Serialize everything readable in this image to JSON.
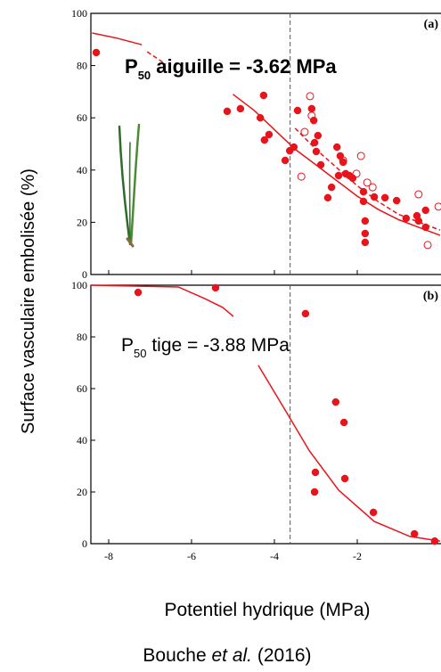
{
  "y_label": "Surface vasculaire embolisée (%)",
  "x_label": "Potentiel hydrique (MPa)",
  "citation": [
    "Bouche ",
    "et al.",
    " (2016)"
  ],
  "chart_data": [
    {
      "type": "scatter",
      "panel_tag": "(a)",
      "annotation": {
        "prefix": "P",
        "subscript": "50",
        "text": " aiguille = -3.62 MPa"
      },
      "xlim": [
        -8.43,
        0
      ],
      "xticks": [
        -8,
        -6,
        -4,
        -2
      ],
      "ylim": [
        0,
        100
      ],
      "yticks": [
        0,
        20,
        40,
        60,
        80,
        100
      ],
      "reference_x": -3.62,
      "series": [
        {
          "color": "#e8141b",
          "marker": "filled",
          "x": [
            -8.3,
            -5.14,
            -4.82,
            -4.26,
            -4.34,
            -4.13,
            -4.24,
            -3.63,
            -3.53,
            -3.74,
            -3.44,
            -3.1,
            -3.05,
            -2.95,
            -3.03,
            -2.99,
            -2.88,
            -2.71,
            -2.62,
            -2.49,
            -2.41,
            -2.34,
            -2.28,
            -2.19,
            -2.11,
            -1.85,
            -1.85,
            -1.81,
            -1.81,
            -1.81,
            -1.59,
            -1.33,
            -1.05,
            -0.82,
            -0.56,
            -0.35,
            -0.35,
            -0.52,
            -2.45
          ],
          "values": [
            85,
            62.5,
            63.5,
            68.6,
            60,
            53.6,
            51.5,
            47.4,
            48.8,
            43.7,
            62.8,
            63.5,
            59,
            53.2,
            50.5,
            47.1,
            42,
            29.4,
            33.4,
            48.8,
            45.4,
            43,
            38.6,
            37.9,
            36.9,
            31.7,
            28,
            20.5,
            15.7,
            12.3,
            29.7,
            29.4,
            28.3,
            21.5,
            22.5,
            24.6,
            18.1,
            20.5,
            37.9
          ]
        },
        {
          "color": "#e8141b",
          "marker": "open",
          "x": [
            -3.27,
            -3.14,
            -3.35,
            -2.34,
            -2.02,
            -1.91,
            -1.76,
            -1.63,
            -0.52,
            -0.3,
            -0.04,
            -3.1
          ],
          "values": [
            54.6,
            68.3,
            37.5,
            43.7,
            38.6,
            45.4,
            35.2,
            33.4,
            30.7,
            11.3,
            26,
            60.8
          ]
        }
      ],
      "curves": [
        {
          "color": "#e8141b",
          "style": "solid",
          "x": [
            -8.4,
            -7.8,
            -7.2,
            null,
            -5,
            -4.5,
            -4,
            -3.5,
            -3,
            -2.5,
            -2,
            -1.5,
            -1,
            -0.5,
            0
          ],
          "values": [
            92.5,
            90.5,
            88,
            null,
            69,
            63,
            55.5,
            48,
            42,
            36,
            30,
            25,
            21,
            18,
            15
          ]
        },
        {
          "color": "#e8141b",
          "style": "dashed",
          "x": [
            -7.07,
            -6.62,
            null,
            -3.5,
            -3,
            -2.5,
            -2,
            -1.5,
            -1,
            -0.5,
            0
          ],
          "values": [
            85.3,
            80.5,
            null,
            56,
            48,
            41,
            34,
            28,
            23,
            20,
            17
          ]
        }
      ]
    },
    {
      "type": "scatter",
      "panel_tag": "(b)",
      "annotation": {
        "prefix": "P",
        "subscript": "50",
        "text": " tige = -3.88 MPa"
      },
      "xlim": [
        -8.43,
        0
      ],
      "xticks": [
        -8,
        -6,
        -4,
        -2
      ],
      "ylim": [
        0,
        100
      ],
      "yticks": [
        0,
        20,
        40,
        60,
        80,
        100
      ],
      "reference_x": -3.62,
      "series": [
        {
          "color": "#e8141b",
          "marker": "filled",
          "x": [
            -7.29,
            -5.42,
            -3.25,
            -3.01,
            -3.03,
            -2.52,
            -2.32,
            -2.3,
            -1.61,
            -0.62,
            -0.13
          ],
          "values": [
            97.2,
            99,
            89,
            27.6,
            20,
            54.8,
            46.9,
            25.2,
            12.1,
            3.8,
            1
          ]
        }
      ],
      "curves": [
        {
          "color": "#e8141b",
          "style": "solid",
          "x": [
            -8.43,
            -6.32,
            -5.68,
            -5.25,
            -4.99,
            null,
            -4.39,
            -3.74,
            -3.16,
            -2.45,
            -1.59,
            -0.73,
            0
          ],
          "values": [
            100,
            99.3,
            94.8,
            91.4,
            87.9,
            null,
            69,
            51.7,
            36,
            20.7,
            8.6,
            2.8,
            1
          ]
        }
      ]
    }
  ]
}
